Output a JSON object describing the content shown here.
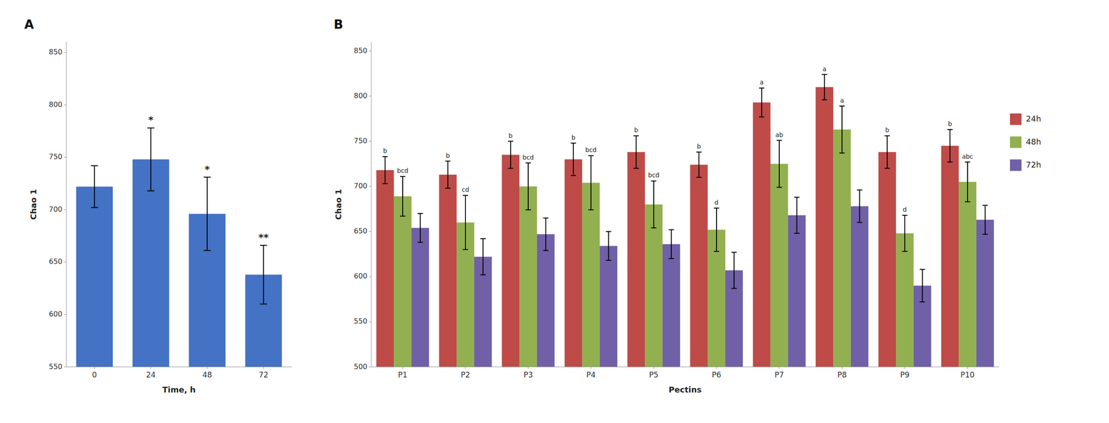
{
  "chart_data": [
    {
      "type": "bar",
      "title": "A",
      "categories": [
        "0",
        "24",
        "48",
        "72"
      ],
      "values": [
        722,
        748,
        696,
        638
      ],
      "errors": [
        20,
        30,
        35,
        28
      ],
      "annotations": [
        null,
        "*",
        "*",
        "**"
      ],
      "color": "#4472C4",
      "xlabel": "Time, h",
      "ylabel": "Chao 1",
      "ylim": [
        550,
        860
      ],
      "yticks": [
        550,
        600,
        650,
        700,
        750,
        800,
        850
      ],
      "grid": false
    },
    {
      "type": "bar",
      "title": "B",
      "categories": [
        "P1",
        "P2",
        "P3",
        "P4",
        "P5",
        "P6",
        "P7",
        "P8",
        "P9",
        "P10"
      ],
      "series": [
        {
          "name": "24h",
          "color": "#BE4B48",
          "values": [
            718,
            713,
            735,
            730,
            738,
            724,
            793,
            810,
            738,
            745
          ],
          "errors": [
            15,
            15,
            15,
            18,
            18,
            14,
            16,
            14,
            18,
            18
          ],
          "annotations": [
            "b",
            "b",
            "b",
            "b",
            "b",
            "b",
            "a",
            "a",
            "b",
            "b"
          ]
        },
        {
          "name": "48h",
          "color": "#92B050",
          "values": [
            689,
            660,
            700,
            704,
            680,
            652,
            725,
            763,
            648,
            705
          ],
          "errors": [
            22,
            30,
            26,
            30,
            26,
            24,
            26,
            26,
            20,
            22
          ],
          "annotations": [
            "bcd",
            "cd",
            "bcd",
            "bcd",
            "bcd",
            "d",
            "ab",
            "a",
            "d",
            "abc"
          ]
        },
        {
          "name": "72h",
          "color": "#7060A8",
          "values": [
            654,
            622,
            647,
            634,
            636,
            607,
            668,
            678,
            590,
            663
          ],
          "errors": [
            16,
            20,
            18,
            16,
            16,
            20,
            20,
            18,
            18,
            16
          ]
        }
      ],
      "xlabel": "Pectins",
      "ylabel": "Chao 1",
      "ylim": [
        500,
        860
      ],
      "yticks": [
        500,
        550,
        600,
        650,
        700,
        750,
        800,
        850
      ],
      "legend": "right",
      "grid": false
    }
  ]
}
